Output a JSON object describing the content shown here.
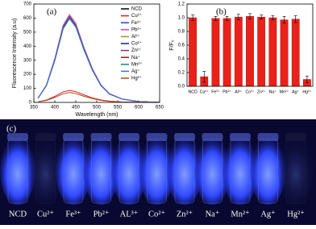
{
  "chart_data": [
    {
      "type": "line",
      "label": "(a)",
      "x_label": "Wavelength (nm)",
      "y_label": "Fluorescence Intensity (a.u)",
      "x": [
        360,
        380,
        400,
        420,
        435,
        450,
        470,
        490,
        510,
        530,
        560,
        600,
        650
      ],
      "xlim": [
        350,
        650
      ],
      "xticks": [
        350,
        400,
        450,
        500,
        550,
        600,
        650
      ],
      "ylim": [
        0,
        700
      ],
      "yticks": [
        0,
        100,
        200,
        300,
        400,
        500,
        600,
        700
      ],
      "series": [
        {
          "name": "NCD",
          "color": "#000000",
          "values": [
            30,
            120,
            300,
            528,
            600,
            540,
            372,
            228,
            120,
            60,
            24,
            6,
            0
          ]
        },
        {
          "name": "Cu²⁺",
          "color": "#e41a1c",
          "values": [
            4,
            17,
            43,
            75,
            85,
            77,
            53,
            32,
            17,
            9,
            3,
            1,
            0
          ]
        },
        {
          "name": "Fe³⁺",
          "color": "#1f3fd0",
          "values": [
            30,
            121,
            303,
            532,
            605,
            545,
            375,
            230,
            121,
            61,
            24,
            6,
            0
          ]
        },
        {
          "name": "Pb²⁺",
          "color": "#e040c0",
          "values": [
            31,
            125,
            313,
            550,
            625,
            563,
            388,
            238,
            125,
            63,
            25,
            6,
            0
          ]
        },
        {
          "name": "Al³⁺",
          "color": "#9a9a20",
          "values": [
            31,
            123,
            308,
            541,
            615,
            554,
            381,
            234,
            123,
            62,
            25,
            6,
            0
          ]
        },
        {
          "name": "Co²⁺",
          "color": "#1a1a80",
          "values": [
            31,
            122,
            305,
            537,
            610,
            549,
            378,
            232,
            122,
            61,
            24,
            6,
            0
          ]
        },
        {
          "name": "Zn²⁺",
          "color": "#8030a0",
          "values": [
            30,
            121,
            303,
            532,
            605,
            545,
            375,
            230,
            121,
            61,
            24,
            6,
            0
          ]
        },
        {
          "name": "Na⁺",
          "color": "#802020",
          "values": [
            30,
            120,
            300,
            528,
            600,
            540,
            372,
            228,
            120,
            60,
            24,
            6,
            0
          ]
        },
        {
          "name": "Mn²⁺",
          "color": "#208080",
          "values": [
            30,
            119,
            298,
            524,
            595,
            536,
            369,
            226,
            119,
            60,
            24,
            6,
            0
          ]
        },
        {
          "name": "Ag⁺",
          "color": "#4070e0",
          "values": [
            30,
            120,
            300,
            528,
            600,
            540,
            372,
            228,
            120,
            60,
            24,
            6,
            0
          ]
        },
        {
          "name": "Hg²⁺",
          "color": "#a05020",
          "values": [
            4,
            14,
            35,
            62,
            70,
            63,
            43,
            27,
            14,
            7,
            3,
            1,
            0
          ]
        }
      ]
    },
    {
      "type": "bar",
      "label": "(b)",
      "y_label": "F/F₀",
      "color": "#e8221b",
      "categories": [
        "NCD",
        "Cu²⁺",
        "Fe³⁺",
        "Pb²⁺",
        "Al³⁺",
        "Co²⁺",
        "Zn²⁺",
        "Na⁺",
        "Mn²⁺",
        "Ag⁺",
        "Hg²⁺"
      ],
      "values": [
        1.0,
        0.14,
        0.99,
        0.99,
        1.01,
        1.02,
        1.01,
        1.0,
        0.97,
        0.98,
        0.1
      ],
      "errors": [
        0.04,
        0.08,
        0.03,
        0.03,
        0.04,
        0.04,
        0.03,
        0.03,
        0.05,
        0.05,
        0.05
      ],
      "ylim": [
        0,
        1.2
      ],
      "yticks": [
        {
          "value": 0,
          "label": "0.0"
        },
        {
          "value": 0.2,
          "label": "0.2"
        },
        {
          "value": 0.4,
          "label": "0.4"
        },
        {
          "value": 0.6,
          "label": "0.6"
        },
        {
          "value": 0.8,
          "label": "0.8"
        },
        {
          "value": 1,
          "label": "1.0"
        },
        {
          "value": 1.2,
          "label": "1.2"
        }
      ]
    }
  ],
  "photo": {
    "label": "(c)",
    "labels": [
      "NCD",
      "Cu²⁺",
      "Fe³⁺",
      "Pb²⁺",
      "AL³⁺",
      "Co²⁺",
      "Zn²⁺",
      "Na⁺",
      "Mn²⁺",
      "Ag⁺",
      "Hg²⁺"
    ]
  }
}
